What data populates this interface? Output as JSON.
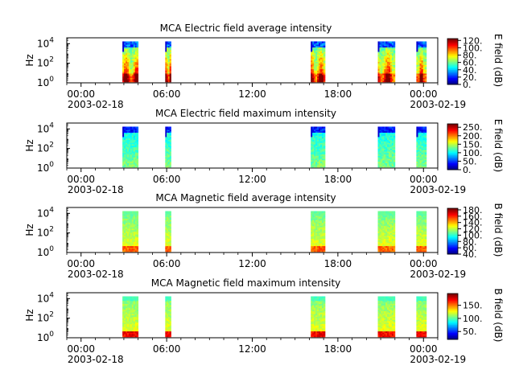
{
  "chart_data": [
    {
      "type": "heatmap",
      "title": "MCA  Electric field average intensity",
      "ylabel": "Hz",
      "colorbar_label": "E field (dB)",
      "colorbar_ticks": [
        0,
        20,
        40,
        60,
        80,
        100,
        120
      ],
      "colorbar_tick_labels": [
        "0.",
        "20.",
        "40.",
        "60.",
        "80.",
        "100.",
        "120."
      ],
      "colorbar_range": [
        0,
        125
      ],
      "yticks": [
        {
          "base": "10",
          "exp": "0"
        },
        {
          "base": "10",
          "exp": "2"
        },
        {
          "base": "10",
          "exp": "4"
        }
      ],
      "ylim_log10": [
        0,
        4.6
      ],
      "xticks": [
        {
          "time": "00:00",
          "date": "2003-02-18"
        },
        {
          "time": "06:00",
          "date": ""
        },
        {
          "time": "12:00",
          "date": ""
        },
        {
          "time": "18:00",
          "date": ""
        },
        {
          "time": "00:00",
          "date": "2003-02-19"
        }
      ],
      "x_tick_hours": [
        0,
        6,
        12,
        18,
        24
      ],
      "xlim_hours": [
        -1,
        25
      ],
      "intervals_hours": [
        [
          2.9,
          4.0
        ],
        [
          5.9,
          6.3
        ],
        [
          16.1,
          17.1
        ],
        [
          20.8,
          22.0
        ],
        [
          23.5,
          24.2
        ]
      ],
      "profile": "e_avg"
    },
    {
      "type": "heatmap",
      "title": "MCA  Electric field maximum intensity",
      "ylabel": "Hz",
      "colorbar_label": "E field (dB)",
      "colorbar_ticks": [
        0,
        50,
        100,
        150,
        200,
        250
      ],
      "colorbar_tick_labels": [
        "0.",
        "50.",
        "100.",
        "150.",
        "200.",
        "250."
      ],
      "colorbar_range": [
        0,
        270
      ],
      "yticks": [
        {
          "base": "10",
          "exp": "0"
        },
        {
          "base": "10",
          "exp": "2"
        },
        {
          "base": "10",
          "exp": "4"
        }
      ],
      "ylim_log10": [
        0,
        4.6
      ],
      "xticks": [
        {
          "time": "00:00",
          "date": "2003-02-18"
        },
        {
          "time": "06:00",
          "date": ""
        },
        {
          "time": "12:00",
          "date": ""
        },
        {
          "time": "18:00",
          "date": ""
        },
        {
          "time": "00:00",
          "date": "2003-02-19"
        }
      ],
      "x_tick_hours": [
        0,
        6,
        12,
        18,
        24
      ],
      "xlim_hours": [
        -1,
        25
      ],
      "intervals_hours": [
        [
          2.9,
          4.0
        ],
        [
          5.9,
          6.3
        ],
        [
          16.1,
          17.1
        ],
        [
          20.8,
          22.0
        ],
        [
          23.5,
          24.2
        ]
      ],
      "profile": "e_max"
    },
    {
      "type": "heatmap",
      "title": "MCA  Magnetic field average intensity",
      "ylabel": "Hz",
      "colorbar_label": "B field (dB)",
      "colorbar_ticks": [
        40,
        60,
        80,
        100,
        120,
        140,
        160,
        180
      ],
      "colorbar_tick_labels": [
        "40.",
        "60.",
        "80.",
        "100.",
        "120.",
        "140.",
        "160.",
        "180."
      ],
      "colorbar_range": [
        40,
        185
      ],
      "yticks": [
        {
          "base": "10",
          "exp": "0"
        },
        {
          "base": "10",
          "exp": "2"
        },
        {
          "base": "10",
          "exp": "4"
        }
      ],
      "ylim_log10": [
        0,
        4.6
      ],
      "xticks": [
        {
          "time": "00:00",
          "date": "2003-02-18"
        },
        {
          "time": "06:00",
          "date": ""
        },
        {
          "time": "12:00",
          "date": ""
        },
        {
          "time": "18:00",
          "date": ""
        },
        {
          "time": "00:00",
          "date": "2003-02-19"
        }
      ],
      "x_tick_hours": [
        0,
        6,
        12,
        18,
        24
      ],
      "xlim_hours": [
        -1,
        25
      ],
      "intervals_hours": [
        [
          2.9,
          4.0
        ],
        [
          5.9,
          6.3
        ],
        [
          16.1,
          17.1
        ],
        [
          20.8,
          22.0
        ],
        [
          23.5,
          24.2
        ]
      ],
      "profile": "b_avg"
    },
    {
      "type": "heatmap",
      "title": "MCA  Magnetic field maximum intensity",
      "ylabel": "Hz",
      "colorbar_label": "B field (dB)",
      "colorbar_ticks": [
        50,
        100,
        150
      ],
      "colorbar_tick_labels": [
        "50.",
        "100.",
        "150."
      ],
      "colorbar_range": [
        20,
        195
      ],
      "yticks": [
        {
          "base": "10",
          "exp": "0"
        },
        {
          "base": "10",
          "exp": "2"
        },
        {
          "base": "10",
          "exp": "4"
        }
      ],
      "ylim_log10": [
        0,
        4.6
      ],
      "xticks": [
        {
          "time": "00:00",
          "date": "2003-02-18"
        },
        {
          "time": "06:00",
          "date": ""
        },
        {
          "time": "12:00",
          "date": ""
        },
        {
          "time": "18:00",
          "date": ""
        },
        {
          "time": "00:00",
          "date": "2003-02-19"
        }
      ],
      "x_tick_hours": [
        0,
        6,
        12,
        18,
        24
      ],
      "xlim_hours": [
        -1,
        25
      ],
      "intervals_hours": [
        [
          2.9,
          4.0
        ],
        [
          5.9,
          6.3
        ],
        [
          16.1,
          17.1
        ],
        [
          20.8,
          22.0
        ],
        [
          23.5,
          24.2
        ]
      ],
      "profile": "b_max"
    }
  ]
}
